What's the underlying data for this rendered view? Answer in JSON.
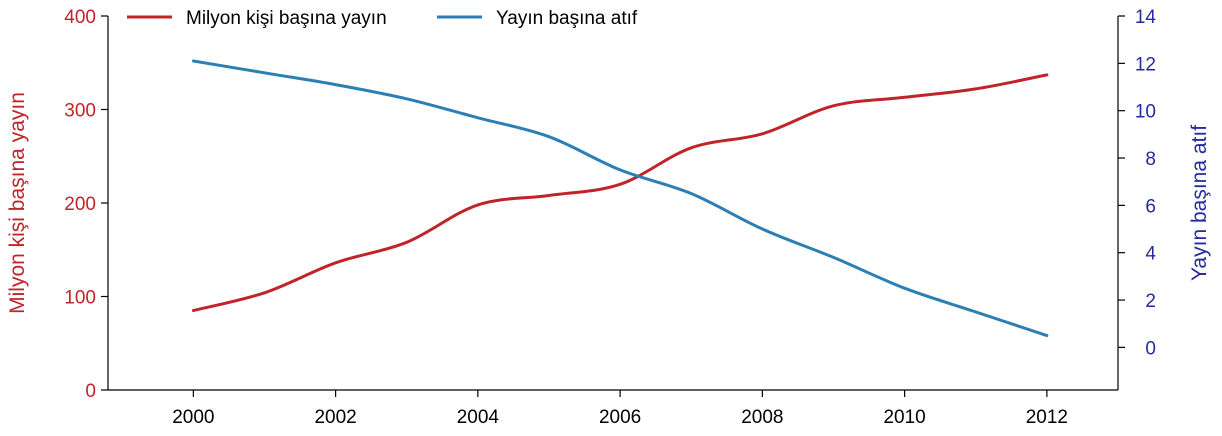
{
  "chart_data": {
    "type": "line",
    "xlabel": "",
    "ylabel_left": "Milyon kişi başına yayın",
    "ylabel_right": "Yayın başına atıf",
    "x": [
      2000,
      2001,
      2002,
      2003,
      2004,
      2005,
      2006,
      2007,
      2008,
      2009,
      2010,
      2011,
      2012
    ],
    "xlim": [
      1998.8,
      2013.0
    ],
    "x_ticks": [
      "2000",
      "2002",
      "2004",
      "2006",
      "2008",
      "2010",
      "2012"
    ],
    "y_left_lim": [
      0,
      400
    ],
    "y_left_ticks": [
      "0",
      "100",
      "200",
      "300",
      "400"
    ],
    "y_right_lim": [
      -1.8,
      14
    ],
    "y_right_ticks": [
      "0",
      "2",
      "4",
      "6",
      "8",
      "10",
      "12",
      "14"
    ],
    "series": [
      {
        "name": "Milyon kişi başına yayın",
        "axis": "left",
        "color": "#c0242b",
        "values": [
          85,
          104,
          136,
          158,
          198,
          208,
          220,
          259,
          274,
          304,
          313,
          322,
          337
        ]
      },
      {
        "name": "Yayın başına atıf",
        "axis": "right",
        "color": "#2b7fb5",
        "values": [
          12.1,
          11.6,
          11.1,
          10.5,
          9.7,
          8.9,
          7.5,
          6.5,
          5.0,
          3.8,
          2.5,
          1.5,
          0.5
        ]
      }
    ],
    "legend_position": "top",
    "grid": false
  }
}
